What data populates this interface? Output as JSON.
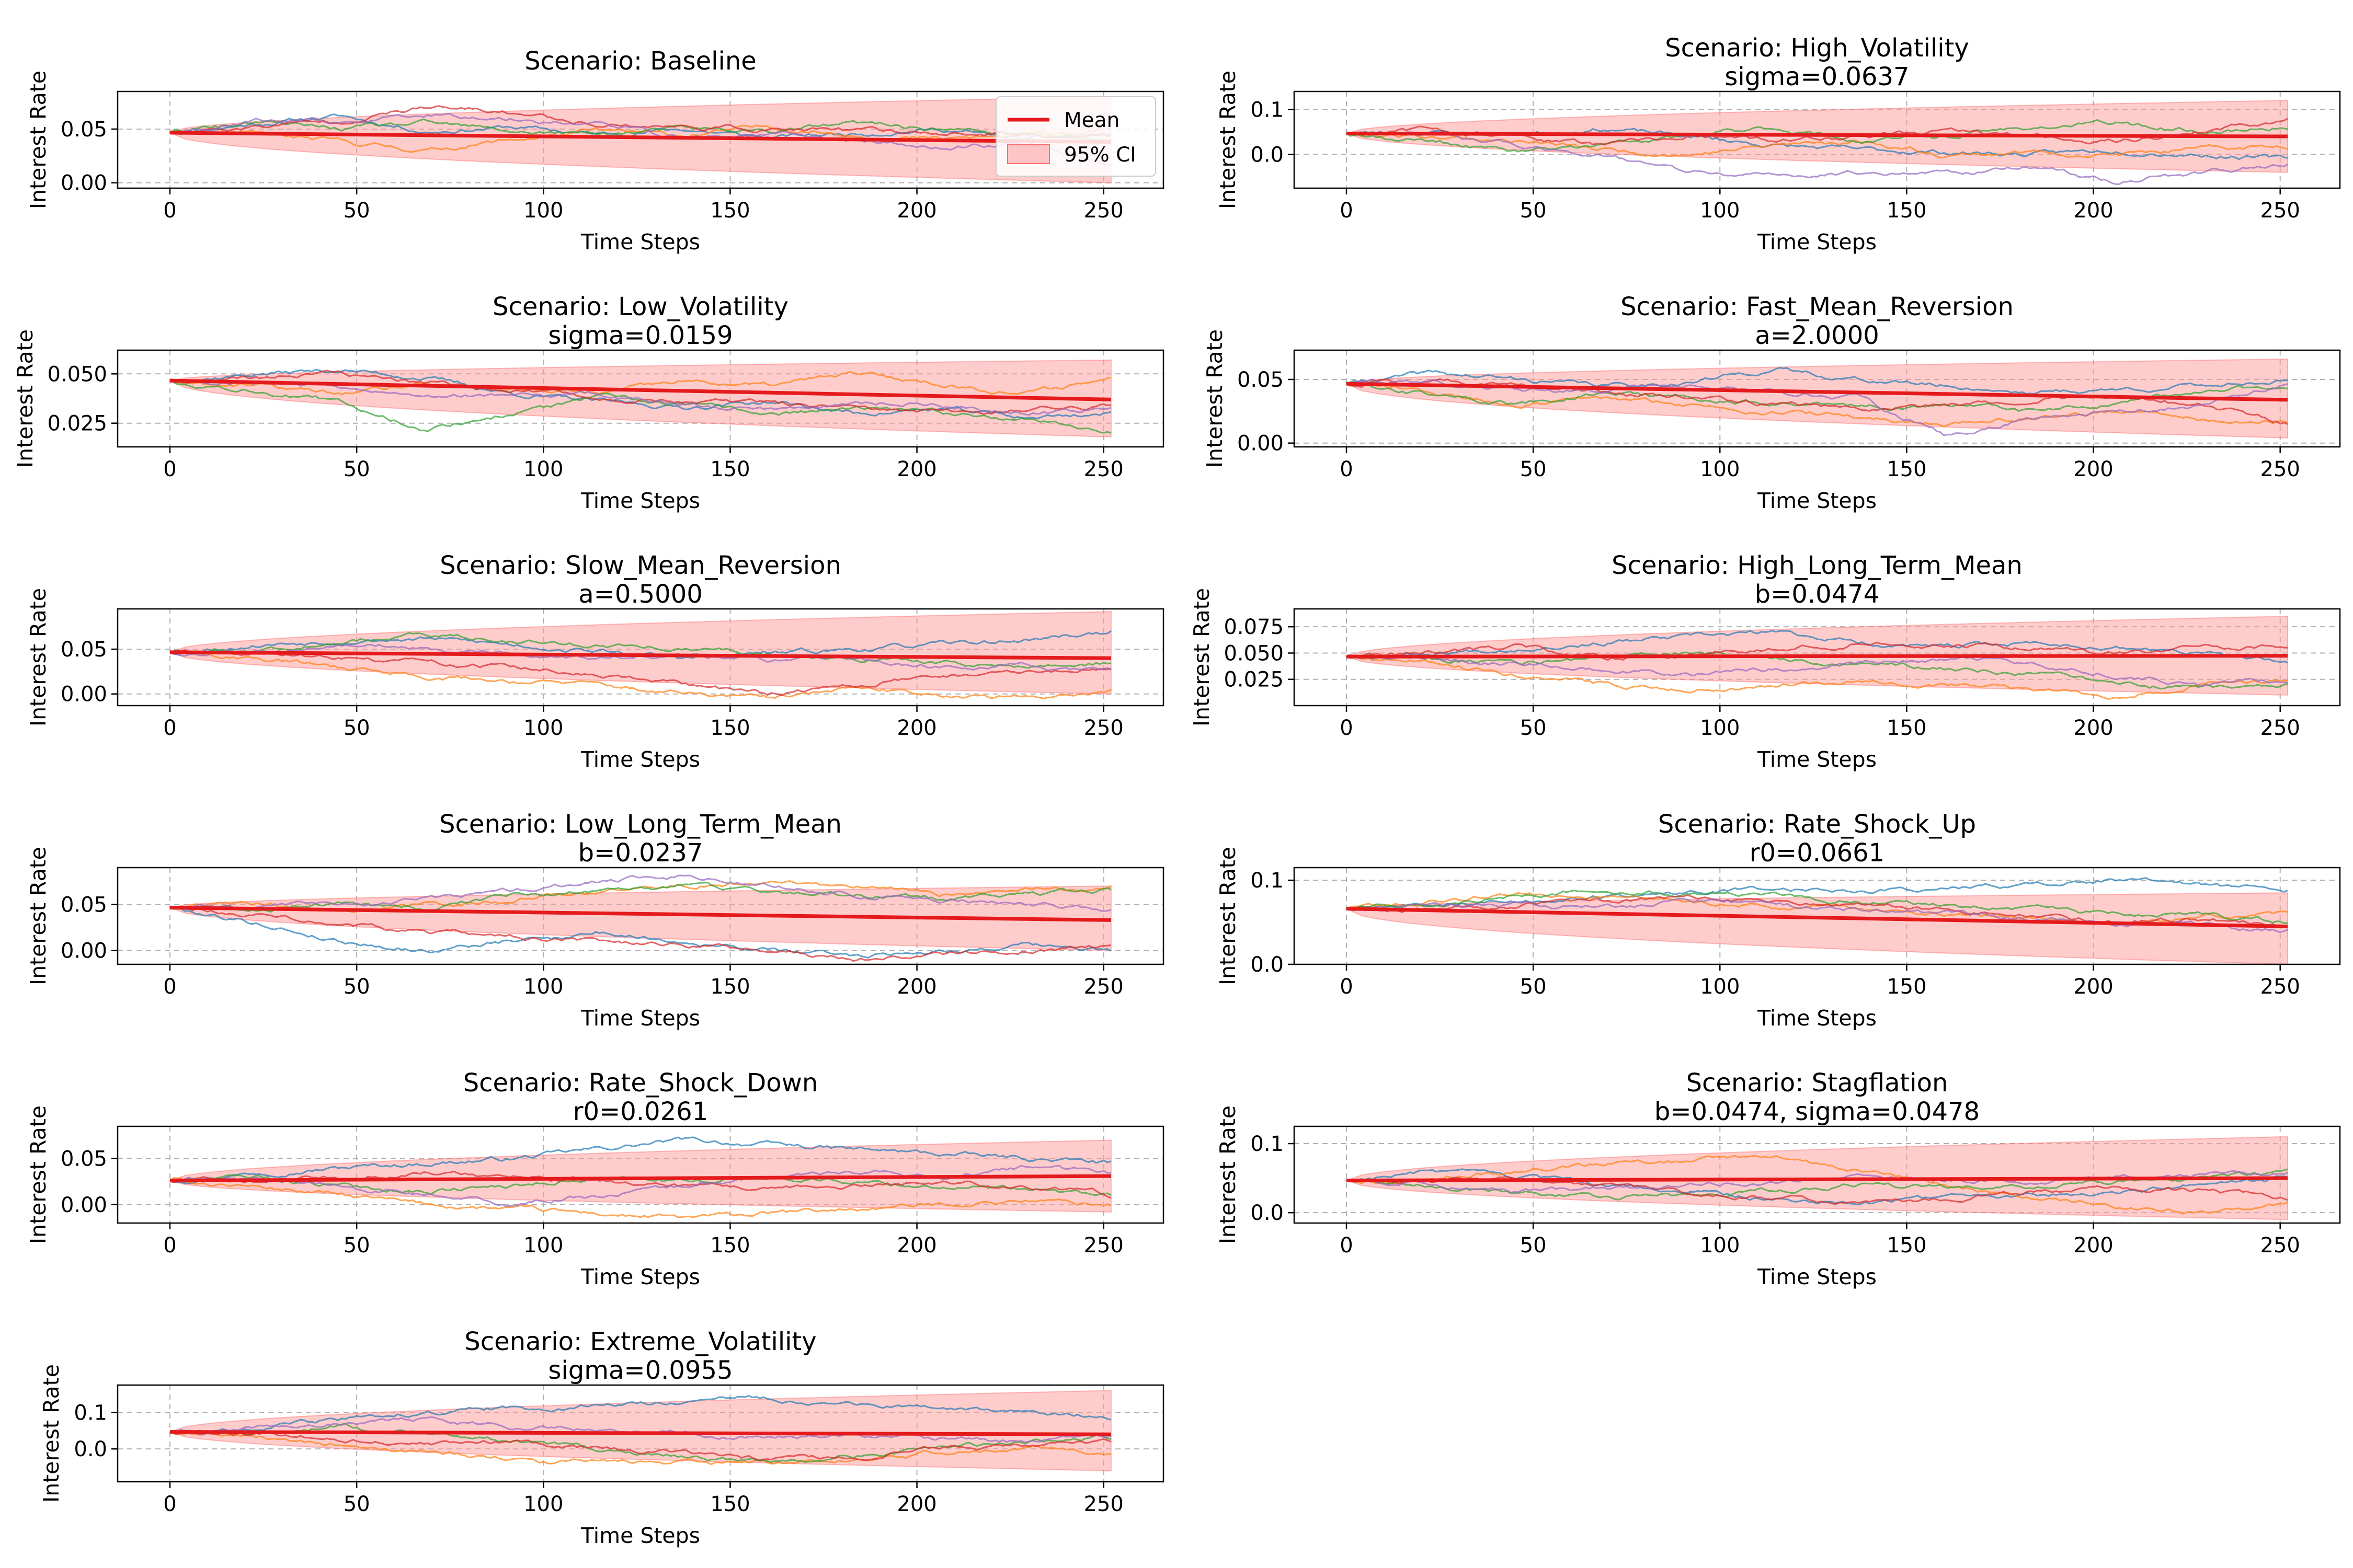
{
  "chart_data": [
    {
      "type": "line",
      "title": "Scenario: Baseline",
      "subtitle": "",
      "xlabel": "Time Steps",
      "ylabel": "Interest Rate",
      "xlim": [
        -14,
        266
      ],
      "ylim": [
        -0.005,
        0.085
      ],
      "xticks": [
        0,
        50,
        100,
        150,
        200,
        250
      ],
      "yticks": [
        0.0,
        0.05
      ],
      "yticklabels": [
        "0.00",
        "0.05"
      ],
      "grid": true,
      "legend": {
        "placement": "top-right",
        "entries": [
          "Mean",
          "95% CI"
        ]
      },
      "start": 0.0466,
      "mean_end": 0.038,
      "ci_end": [
        0.0,
        0.08
      ],
      "seed": 11,
      "paths": [
        [
          0.0466,
          0.055,
          0.062,
          0.048,
          0.052,
          0.045,
          0.05,
          0.042,
          0.046,
          0.05,
          0.04,
          0.045
        ],
        [
          0.0466,
          0.045,
          0.038,
          0.03,
          0.04,
          0.048,
          0.044,
          0.052,
          0.045,
          0.04,
          0.044,
          0.05
        ],
        [
          0.0466,
          0.056,
          0.05,
          0.055,
          0.048,
          0.045,
          0.05,
          0.048,
          0.055,
          0.05,
          0.045,
          0.04
        ],
        [
          0.0466,
          0.052,
          0.058,
          0.07,
          0.065,
          0.055,
          0.052,
          0.05,
          0.048,
          0.047,
          0.044,
          0.045
        ],
        [
          0.0466,
          0.058,
          0.055,
          0.065,
          0.06,
          0.055,
          0.042,
          0.045,
          0.04,
          0.032,
          0.038,
          0.015
        ]
      ]
    },
    {
      "type": "line",
      "title": "Scenario: High_Volatility",
      "subtitle": "sigma=0.0637",
      "xlabel": "Time Steps",
      "ylabel": "Interest Rate",
      "xlim": [
        -14,
        266
      ],
      "ylim": [
        -0.075,
        0.14
      ],
      "xticks": [
        0,
        50,
        100,
        150,
        200,
        250
      ],
      "yticks": [
        0.0,
        0.1
      ],
      "yticklabels": [
        "0.0",
        "0.1"
      ],
      "grid": true,
      "start": 0.0466,
      "mean_end": 0.04,
      "ci_end": [
        -0.04,
        0.12
      ],
      "seed": 23,
      "paths": [
        [
          0.0466,
          0.05,
          0.045,
          0.058,
          0.04,
          0.02,
          0.01,
          0.005,
          0.0,
          0.01,
          0.0,
          -0.01
        ],
        [
          0.0466,
          0.04,
          0.03,
          0.01,
          0.0,
          0.02,
          0.03,
          0.0,
          0.005,
          0.0,
          0.01,
          0.02
        ],
        [
          0.0466,
          0.03,
          0.005,
          0.02,
          0.04,
          0.06,
          0.03,
          0.04,
          0.06,
          0.07,
          0.05,
          0.06
        ],
        [
          0.0466,
          0.055,
          0.04,
          0.02,
          0.04,
          0.03,
          0.04,
          0.05,
          0.04,
          0.03,
          0.05,
          0.08
        ],
        [
          0.0466,
          0.045,
          0.02,
          0.0,
          -0.04,
          -0.05,
          -0.04,
          -0.04,
          -0.03,
          -0.06,
          -0.04,
          -0.02
        ]
      ]
    },
    {
      "type": "line",
      "title": "Scenario: Low_Volatility",
      "subtitle": "sigma=0.0159",
      "xlabel": "Time Steps",
      "ylabel": "Interest Rate",
      "xlim": [
        -14,
        266
      ],
      "ylim": [
        0.013,
        0.062
      ],
      "xticks": [
        0,
        50,
        100,
        150,
        200,
        250
      ],
      "yticks": [
        0.025,
        0.05
      ],
      "yticklabels": [
        "0.025",
        "0.050"
      ],
      "grid": true,
      "start": 0.0466,
      "mean_end": 0.037,
      "ci_end": [
        0.018,
        0.057
      ],
      "seed": 37,
      "paths": [
        [
          0.0466,
          0.05,
          0.052,
          0.048,
          0.04,
          0.036,
          0.033,
          0.036,
          0.03,
          0.032,
          0.028,
          0.03
        ],
        [
          0.0466,
          0.044,
          0.04,
          0.045,
          0.042,
          0.04,
          0.046,
          0.044,
          0.05,
          0.045,
          0.04,
          0.048
        ],
        [
          0.0466,
          0.042,
          0.035,
          0.022,
          0.03,
          0.038,
          0.034,
          0.03,
          0.032,
          0.03,
          0.028,
          0.02
        ],
        [
          0.0466,
          0.048,
          0.05,
          0.045,
          0.042,
          0.038,
          0.036,
          0.035,
          0.032,
          0.03,
          0.032,
          0.034
        ],
        [
          0.0466,
          0.046,
          0.044,
          0.04,
          0.038,
          0.04,
          0.034,
          0.032,
          0.036,
          0.034,
          0.03,
          0.032
        ]
      ]
    },
    {
      "type": "line",
      "title": "Scenario: Fast_Mean_Reversion",
      "subtitle": "a=2.0000",
      "xlabel": "Time Steps",
      "ylabel": "Interest Rate",
      "xlim": [
        -14,
        266
      ],
      "ylim": [
        -0.003,
        0.073
      ],
      "xticks": [
        0,
        50,
        100,
        150,
        200,
        250
      ],
      "yticks": [
        0.0,
        0.05
      ],
      "yticklabels": [
        "0.00",
        "0.05"
      ],
      "grid": true,
      "start": 0.0466,
      "mean_end": 0.034,
      "ci_end": [
        0.004,
        0.066
      ],
      "seed": 41,
      "paths": [
        [
          0.0466,
          0.055,
          0.05,
          0.045,
          0.048,
          0.058,
          0.05,
          0.045,
          0.04,
          0.042,
          0.045,
          0.05
        ],
        [
          0.0466,
          0.04,
          0.03,
          0.035,
          0.03,
          0.025,
          0.02,
          0.015,
          0.02,
          0.025,
          0.018,
          0.015
        ],
        [
          0.0466,
          0.038,
          0.03,
          0.04,
          0.035,
          0.03,
          0.028,
          0.03,
          0.025,
          0.03,
          0.04,
          0.045
        ],
        [
          0.0466,
          0.05,
          0.045,
          0.04,
          0.035,
          0.03,
          0.028,
          0.03,
          0.035,
          0.038,
          0.03,
          0.015
        ],
        [
          0.0466,
          0.048,
          0.04,
          0.042,
          0.045,
          0.04,
          0.035,
          0.005,
          0.02,
          0.025,
          0.03,
          0.045
        ]
      ]
    },
    {
      "type": "line",
      "title": "Scenario: Slow_Mean_Reversion",
      "subtitle": "a=0.5000",
      "xlabel": "Time Steps",
      "ylabel": "Interest Rate",
      "xlim": [
        -14,
        266
      ],
      "ylim": [
        -0.013,
        0.095
      ],
      "xticks": [
        0,
        50,
        100,
        150,
        200,
        250
      ],
      "yticks": [
        0.0,
        0.05
      ],
      "yticklabels": [
        "0.00",
        "0.05"
      ],
      "grid": true,
      "start": 0.0466,
      "mean_end": 0.04,
      "ci_end": [
        0.0,
        0.092
      ],
      "seed": 53,
      "paths": [
        [
          0.0466,
          0.055,
          0.06,
          0.062,
          0.055,
          0.048,
          0.04,
          0.045,
          0.05,
          0.055,
          0.06,
          0.07
        ],
        [
          0.0466,
          0.04,
          0.03,
          0.02,
          0.015,
          0.01,
          0.0,
          -0.005,
          0.005,
          0.0,
          -0.005,
          0.005
        ],
        [
          0.0466,
          0.05,
          0.06,
          0.065,
          0.06,
          0.055,
          0.05,
          0.045,
          0.04,
          0.035,
          0.03,
          0.035
        ],
        [
          0.0466,
          0.045,
          0.04,
          0.035,
          0.03,
          0.02,
          0.01,
          0.0,
          0.01,
          0.02,
          0.025,
          0.03
        ],
        [
          0.0466,
          0.048,
          0.055,
          0.05,
          0.045,
          0.04,
          0.042,
          0.038,
          0.04,
          0.032,
          0.03,
          0.025
        ]
      ]
    },
    {
      "type": "line",
      "title": "Scenario: High_Long_Term_Mean",
      "subtitle": "b=0.0474",
      "xlabel": "Time Steps",
      "ylabel": "Interest Rate",
      "xlim": [
        -14,
        266
      ],
      "ylim": [
        0.0,
        0.092
      ],
      "xticks": [
        0,
        50,
        100,
        150,
        200,
        250
      ],
      "yticks": [
        0.025,
        0.05,
        0.075
      ],
      "yticklabels": [
        "0.025",
        "0.050",
        "0.075"
      ],
      "grid": true,
      "start": 0.0466,
      "mean_end": 0.0474,
      "ci_end": [
        0.01,
        0.085
      ],
      "seed": 67,
      "paths": [
        [
          0.0466,
          0.05,
          0.055,
          0.06,
          0.065,
          0.07,
          0.06,
          0.055,
          0.06,
          0.055,
          0.05,
          0.04
        ],
        [
          0.0466,
          0.04,
          0.03,
          0.02,
          0.015,
          0.02,
          0.025,
          0.02,
          0.015,
          0.01,
          0.02,
          0.025
        ],
        [
          0.0466,
          0.045,
          0.04,
          0.045,
          0.05,
          0.045,
          0.04,
          0.035,
          0.03,
          0.02,
          0.015,
          0.02
        ],
        [
          0.0466,
          0.05,
          0.055,
          0.045,
          0.05,
          0.055,
          0.06,
          0.058,
          0.055,
          0.05,
          0.055,
          0.058
        ],
        [
          0.0466,
          0.045,
          0.04,
          0.035,
          0.03,
          0.035,
          0.04,
          0.045,
          0.04,
          0.03,
          0.02,
          0.025
        ]
      ]
    },
    {
      "type": "line",
      "title": "Scenario: Low_Long_Term_Mean",
      "subtitle": "b=0.0237",
      "xlabel": "Time Steps",
      "ylabel": "Interest Rate",
      "xlim": [
        -14,
        266
      ],
      "ylim": [
        -0.015,
        0.09
      ],
      "xticks": [
        0,
        50,
        100,
        150,
        200,
        250
      ],
      "yticks": [
        0.0,
        0.05
      ],
      "yticklabels": [
        "0.00",
        "0.05"
      ],
      "grid": true,
      "start": 0.0466,
      "mean_end": 0.033,
      "ci_end": [
        0.0,
        0.07
      ],
      "seed": 79,
      "paths": [
        [
          0.0466,
          0.03,
          0.01,
          0.0,
          0.01,
          0.02,
          0.01,
          0.0,
          -0.005,
          0.0,
          0.005,
          0.0
        ],
        [
          0.0466,
          0.05,
          0.045,
          0.05,
          0.055,
          0.065,
          0.07,
          0.075,
          0.07,
          0.06,
          0.065,
          0.07
        ],
        [
          0.0466,
          0.045,
          0.05,
          0.045,
          0.06,
          0.065,
          0.07,
          0.065,
          0.06,
          0.055,
          0.06,
          0.065
        ],
        [
          0.0466,
          0.04,
          0.03,
          0.02,
          0.015,
          0.01,
          0.005,
          0.0,
          -0.01,
          -0.005,
          0.0,
          0.005
        ],
        [
          0.0466,
          0.048,
          0.05,
          0.055,
          0.065,
          0.075,
          0.08,
          0.07,
          0.06,
          0.055,
          0.05,
          0.045
        ]
      ]
    },
    {
      "type": "line",
      "title": "Scenario: Rate_Shock_Up",
      "subtitle": "r0=0.0661",
      "xlabel": "Time Steps",
      "ylabel": "Interest Rate",
      "xlim": [
        -14,
        266
      ],
      "ylim": [
        0.0,
        0.115
      ],
      "xticks": [
        0,
        50,
        100,
        150,
        200,
        250
      ],
      "yticks": [
        0.0,
        0.1
      ],
      "yticklabels": [
        "0.0",
        "0.1"
      ],
      "grid": true,
      "start": 0.0661,
      "mean_end": 0.045,
      "ci_end": [
        0.0,
        0.085
      ],
      "seed": 89,
      "paths": [
        [
          0.0661,
          0.07,
          0.075,
          0.08,
          0.085,
          0.09,
          0.088,
          0.09,
          0.095,
          0.1,
          0.095,
          0.088
        ],
        [
          0.0661,
          0.075,
          0.085,
          0.08,
          0.075,
          0.07,
          0.065,
          0.06,
          0.055,
          0.05,
          0.055,
          0.06
        ],
        [
          0.0661,
          0.07,
          0.08,
          0.09,
          0.085,
          0.08,
          0.075,
          0.07,
          0.065,
          0.06,
          0.058,
          0.05
        ],
        [
          0.0661,
          0.065,
          0.07,
          0.075,
          0.08,
          0.075,
          0.07,
          0.065,
          0.06,
          0.05,
          0.055,
          0.045
        ],
        [
          0.0661,
          0.07,
          0.072,
          0.068,
          0.075,
          0.07,
          0.065,
          0.06,
          0.055,
          0.05,
          0.045,
          0.04
        ]
      ]
    },
    {
      "type": "line",
      "title": "Scenario: Rate_Shock_Down",
      "subtitle": "r0=0.0261",
      "xlabel": "Time Steps",
      "ylabel": "Interest Rate",
      "xlim": [
        -14,
        266
      ],
      "ylim": [
        -0.02,
        0.085
      ],
      "xticks": [
        0,
        50,
        100,
        150,
        200,
        250
      ],
      "yticks": [
        0.0,
        0.05
      ],
      "yticklabels": [
        "0.00",
        "0.05"
      ],
      "grid": true,
      "start": 0.0261,
      "mean_end": 0.031,
      "ci_end": [
        -0.008,
        0.07
      ],
      "seed": 97,
      "paths": [
        [
          0.0261,
          0.035,
          0.04,
          0.045,
          0.05,
          0.06,
          0.07,
          0.065,
          0.06,
          0.055,
          0.05,
          0.045
        ],
        [
          0.0261,
          0.02,
          0.01,
          0.0,
          -0.005,
          -0.01,
          -0.015,
          -0.01,
          -0.005,
          0.0,
          0.005,
          0.0
        ],
        [
          0.0261,
          0.03,
          0.02,
          0.015,
          0.02,
          0.03,
          0.025,
          0.03,
          0.025,
          0.02,
          0.015,
          0.01
        ],
        [
          0.0261,
          0.025,
          0.03,
          0.035,
          0.03,
          0.025,
          0.02,
          0.015,
          0.02,
          0.025,
          0.02,
          0.01
        ],
        [
          0.0261,
          0.03,
          0.02,
          0.01,
          0.0,
          0.01,
          0.02,
          0.03,
          0.035,
          0.03,
          0.04,
          0.035
        ]
      ]
    },
    {
      "type": "line",
      "title": "Scenario: Stagflation",
      "subtitle": "b=0.0474, sigma=0.0478",
      "xlabel": "Time Steps",
      "ylabel": "Interest Rate",
      "xlim": [
        -14,
        266
      ],
      "ylim": [
        -0.015,
        0.125
      ],
      "xticks": [
        0,
        50,
        100,
        150,
        200,
        250
      ],
      "yticks": [
        0.0,
        0.1
      ],
      "yticklabels": [
        "0.0",
        "0.1"
      ],
      "grid": true,
      "start": 0.0466,
      "mean_end": 0.05,
      "ci_end": [
        -0.01,
        0.11
      ],
      "seed": 103,
      "paths": [
        [
          0.0466,
          0.06,
          0.05,
          0.04,
          0.03,
          0.02,
          0.015,
          0.02,
          0.025,
          0.03,
          0.04,
          0.05
        ],
        [
          0.0466,
          0.05,
          0.06,
          0.07,
          0.075,
          0.08,
          0.06,
          0.04,
          0.02,
          0.01,
          0.0,
          0.01
        ],
        [
          0.0466,
          0.04,
          0.03,
          0.02,
          0.025,
          0.03,
          0.04,
          0.035,
          0.04,
          0.045,
          0.05,
          0.06
        ],
        [
          0.0466,
          0.045,
          0.05,
          0.04,
          0.03,
          0.02,
          0.015,
          0.02,
          0.03,
          0.035,
          0.03,
          0.02
        ],
        [
          0.0466,
          0.04,
          0.03,
          0.035,
          0.04,
          0.045,
          0.05,
          0.048,
          0.045,
          0.05,
          0.055,
          0.06
        ]
      ]
    },
    {
      "type": "line",
      "title": "Scenario: Extreme_Volatility",
      "subtitle": "sigma=0.0955",
      "xlabel": "Time Steps",
      "ylabel": "Interest Rate",
      "xlim": [
        -14,
        266
      ],
      "ylim": [
        -0.09,
        0.175
      ],
      "xticks": [
        0,
        50,
        100,
        150,
        200,
        250
      ],
      "yticks": [
        0.0,
        0.1
      ],
      "yticklabels": [
        "0.0",
        "0.1"
      ],
      "grid": true,
      "start": 0.0466,
      "mean_end": 0.04,
      "ci_end": [
        -0.06,
        0.16
      ],
      "seed": 113,
      "paths": [
        [
          0.0466,
          0.06,
          0.08,
          0.1,
          0.11,
          0.12,
          0.13,
          0.14,
          0.12,
          0.11,
          0.1,
          0.09
        ],
        [
          0.0466,
          0.03,
          0.01,
          -0.01,
          -0.03,
          -0.04,
          -0.03,
          -0.04,
          -0.03,
          -0.01,
          0.0,
          -0.01
        ],
        [
          0.0466,
          0.05,
          0.06,
          0.04,
          0.02,
          0.0,
          -0.02,
          -0.04,
          -0.02,
          0.0,
          0.02,
          0.03
        ],
        [
          0.0466,
          0.04,
          0.03,
          0.01,
          0.02,
          0.0,
          -0.01,
          -0.03,
          -0.02,
          0.0,
          0.01,
          0.02
        ],
        [
          0.0466,
          0.06,
          0.07,
          0.08,
          0.06,
          0.05,
          0.04,
          0.03,
          0.04,
          0.03,
          0.02,
          0.03
        ]
      ]
    }
  ],
  "colors": {
    "mean": "#e41a1c",
    "ci_fill": "#ff9999",
    "paths": [
      "#1f77b4",
      "#ff7f0e",
      "#2ca02c",
      "#d62728",
      "#9467bd"
    ],
    "grid": "#b0b0b0",
    "axes": "#000000"
  }
}
